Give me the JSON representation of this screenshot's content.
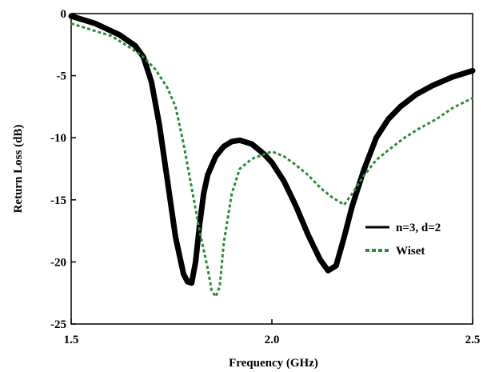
{
  "chart_data": {
    "type": "line",
    "xlabel": "Frequency (GHz)",
    "ylabel": "Return Loss (dB)",
    "xlim": [
      1.5,
      2.5
    ],
    "ylim": [
      -25,
      0
    ],
    "xticks": [
      1.5,
      2.0,
      2.5
    ],
    "xtick_labels": [
      "1.5",
      "2.0",
      "2.5"
    ],
    "yticks": [
      0,
      -5,
      -10,
      -15,
      -20,
      -25
    ],
    "ytick_labels": [
      "0",
      "-5",
      "-10",
      "-15",
      "-20",
      "-25"
    ],
    "grid": false,
    "legend_position": "right",
    "series": [
      {
        "name": "n=3, d=2",
        "color": "#000000",
        "style": "solid",
        "x": [
          1.5,
          1.56,
          1.62,
          1.66,
          1.68,
          1.7,
          1.72,
          1.74,
          1.76,
          1.78,
          1.79,
          1.8,
          1.81,
          1.82,
          1.83,
          1.84,
          1.86,
          1.88,
          1.9,
          1.92,
          1.95,
          1.98,
          2.0,
          2.03,
          2.06,
          2.09,
          2.12,
          2.14,
          2.16,
          2.18,
          2.2,
          2.23,
          2.26,
          2.29,
          2.32,
          2.36,
          2.4,
          2.45,
          2.5
        ],
        "y": [
          -0.2,
          -0.8,
          -1.7,
          -2.6,
          -3.5,
          -5.5,
          -9.0,
          -13.5,
          -18.0,
          -21.0,
          -21.6,
          -21.7,
          -20.0,
          -17.0,
          -14.5,
          -13.0,
          -11.5,
          -10.7,
          -10.3,
          -10.2,
          -10.5,
          -11.3,
          -12.0,
          -13.5,
          -15.5,
          -17.8,
          -19.8,
          -20.7,
          -20.3,
          -18.0,
          -15.5,
          -12.5,
          -10.0,
          -8.5,
          -7.5,
          -6.5,
          -5.8,
          -5.1,
          -4.6
        ]
      },
      {
        "name": "Wiset",
        "color": "#2e8b3c",
        "style": "dashed",
        "x": [
          1.5,
          1.55,
          1.6,
          1.65,
          1.68,
          1.71,
          1.74,
          1.76,
          1.78,
          1.8,
          1.82,
          1.84,
          1.85,
          1.86,
          1.87,
          1.88,
          1.9,
          1.92,
          1.95,
          2.0,
          2.03,
          2.06,
          2.09,
          2.12,
          2.15,
          2.18,
          2.2,
          2.23,
          2.26,
          2.29,
          2.33,
          2.37,
          2.41,
          2.45,
          2.5
        ],
        "y": [
          -0.8,
          -1.3,
          -1.8,
          -2.8,
          -3.5,
          -4.5,
          -6.0,
          -7.5,
          -10.5,
          -14.0,
          -17.5,
          -20.5,
          -22.3,
          -22.8,
          -22.0,
          -18.5,
          -14.5,
          -12.5,
          -11.7,
          -11.1,
          -11.5,
          -12.2,
          -13.0,
          -14.0,
          -14.8,
          -15.4,
          -14.5,
          -13.0,
          -11.8,
          -11.0,
          -10.0,
          -9.2,
          -8.5,
          -7.6,
          -6.8
        ]
      }
    ]
  }
}
